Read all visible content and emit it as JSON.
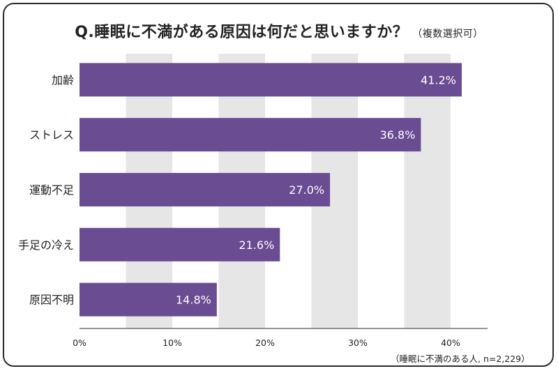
{
  "title": "Q.睡眠に不満がある原因は何だと思いますか？",
  "subtitle": "（複数選択可）",
  "note": "（睡眠に不満のある人, n=2,229）",
  "chart_data": {
    "type": "bar",
    "orientation": "horizontal",
    "categories": [
      "加齢",
      "ストレス",
      "運動不足",
      "手足の冷え",
      "原因不明"
    ],
    "values": [
      41.2,
      36.8,
      27.0,
      21.6,
      14.8
    ],
    "value_labels": [
      "41.2%",
      "36.8%",
      "27.0%",
      "21.6%",
      "14.8%"
    ],
    "xticks": [
      "0%",
      "10%",
      "20%",
      "30%",
      "40%"
    ],
    "xlim": [
      0,
      44
    ],
    "bar_color": "#6a4c93",
    "band_color": "#e6e6e6",
    "grid": "alternating vertical bands"
  }
}
